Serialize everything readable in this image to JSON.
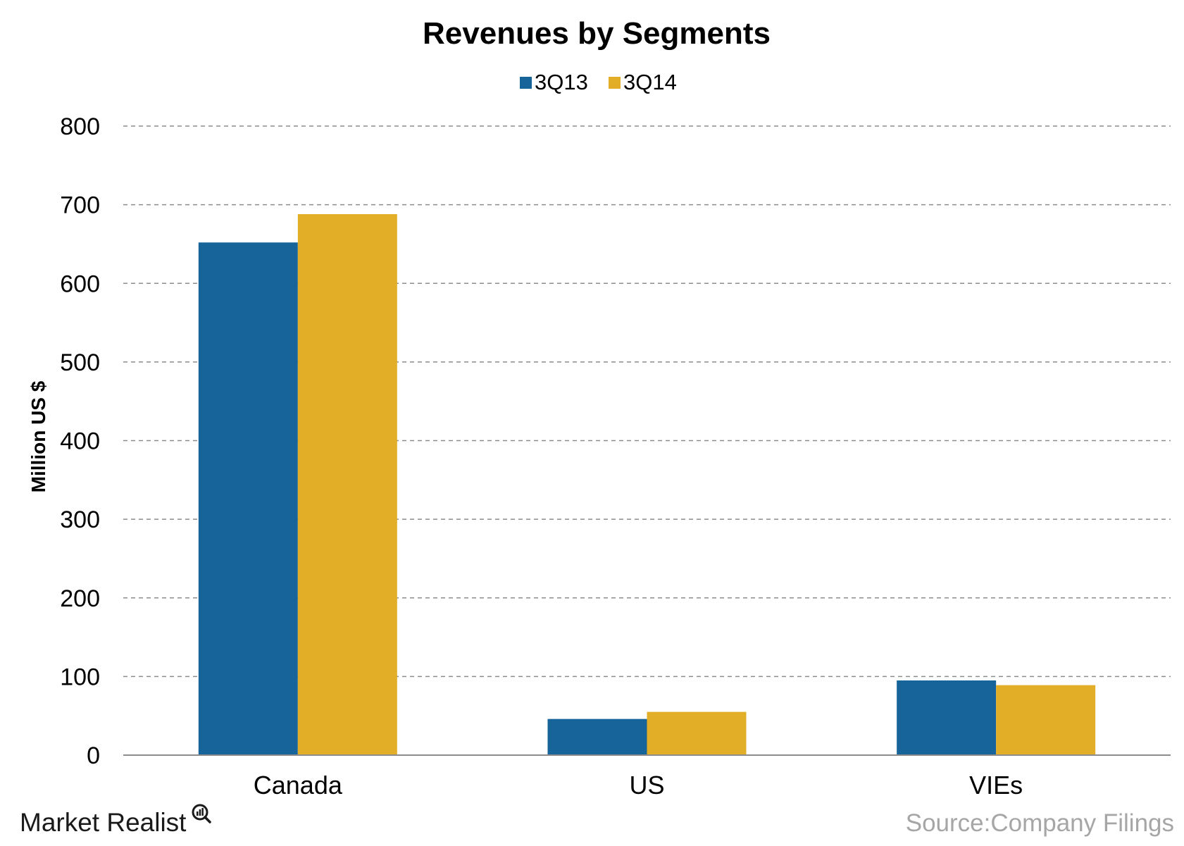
{
  "chart_data": {
    "type": "bar",
    "title": "Revenues by Segments",
    "xlabel": "",
    "ylabel": "Million US $",
    "categories": [
      "Canada",
      "US",
      "VIEs"
    ],
    "series": [
      {
        "name": "3Q13",
        "values": [
          652,
          46,
          95
        ],
        "color": "#17649a"
      },
      {
        "name": "3Q14",
        "values": [
          688,
          55,
          89
        ],
        "color": "#e2ae28"
      }
    ],
    "ylim": [
      0,
      800
    ],
    "yticks": [
      0,
      100,
      200,
      300,
      400,
      500,
      600,
      700,
      800
    ],
    "grid": true,
    "legend": "top-center"
  },
  "footer": {
    "brand": "Market Realist",
    "brand_icon": "magnifier-chart-icon",
    "source": "Source:Company Filings"
  }
}
